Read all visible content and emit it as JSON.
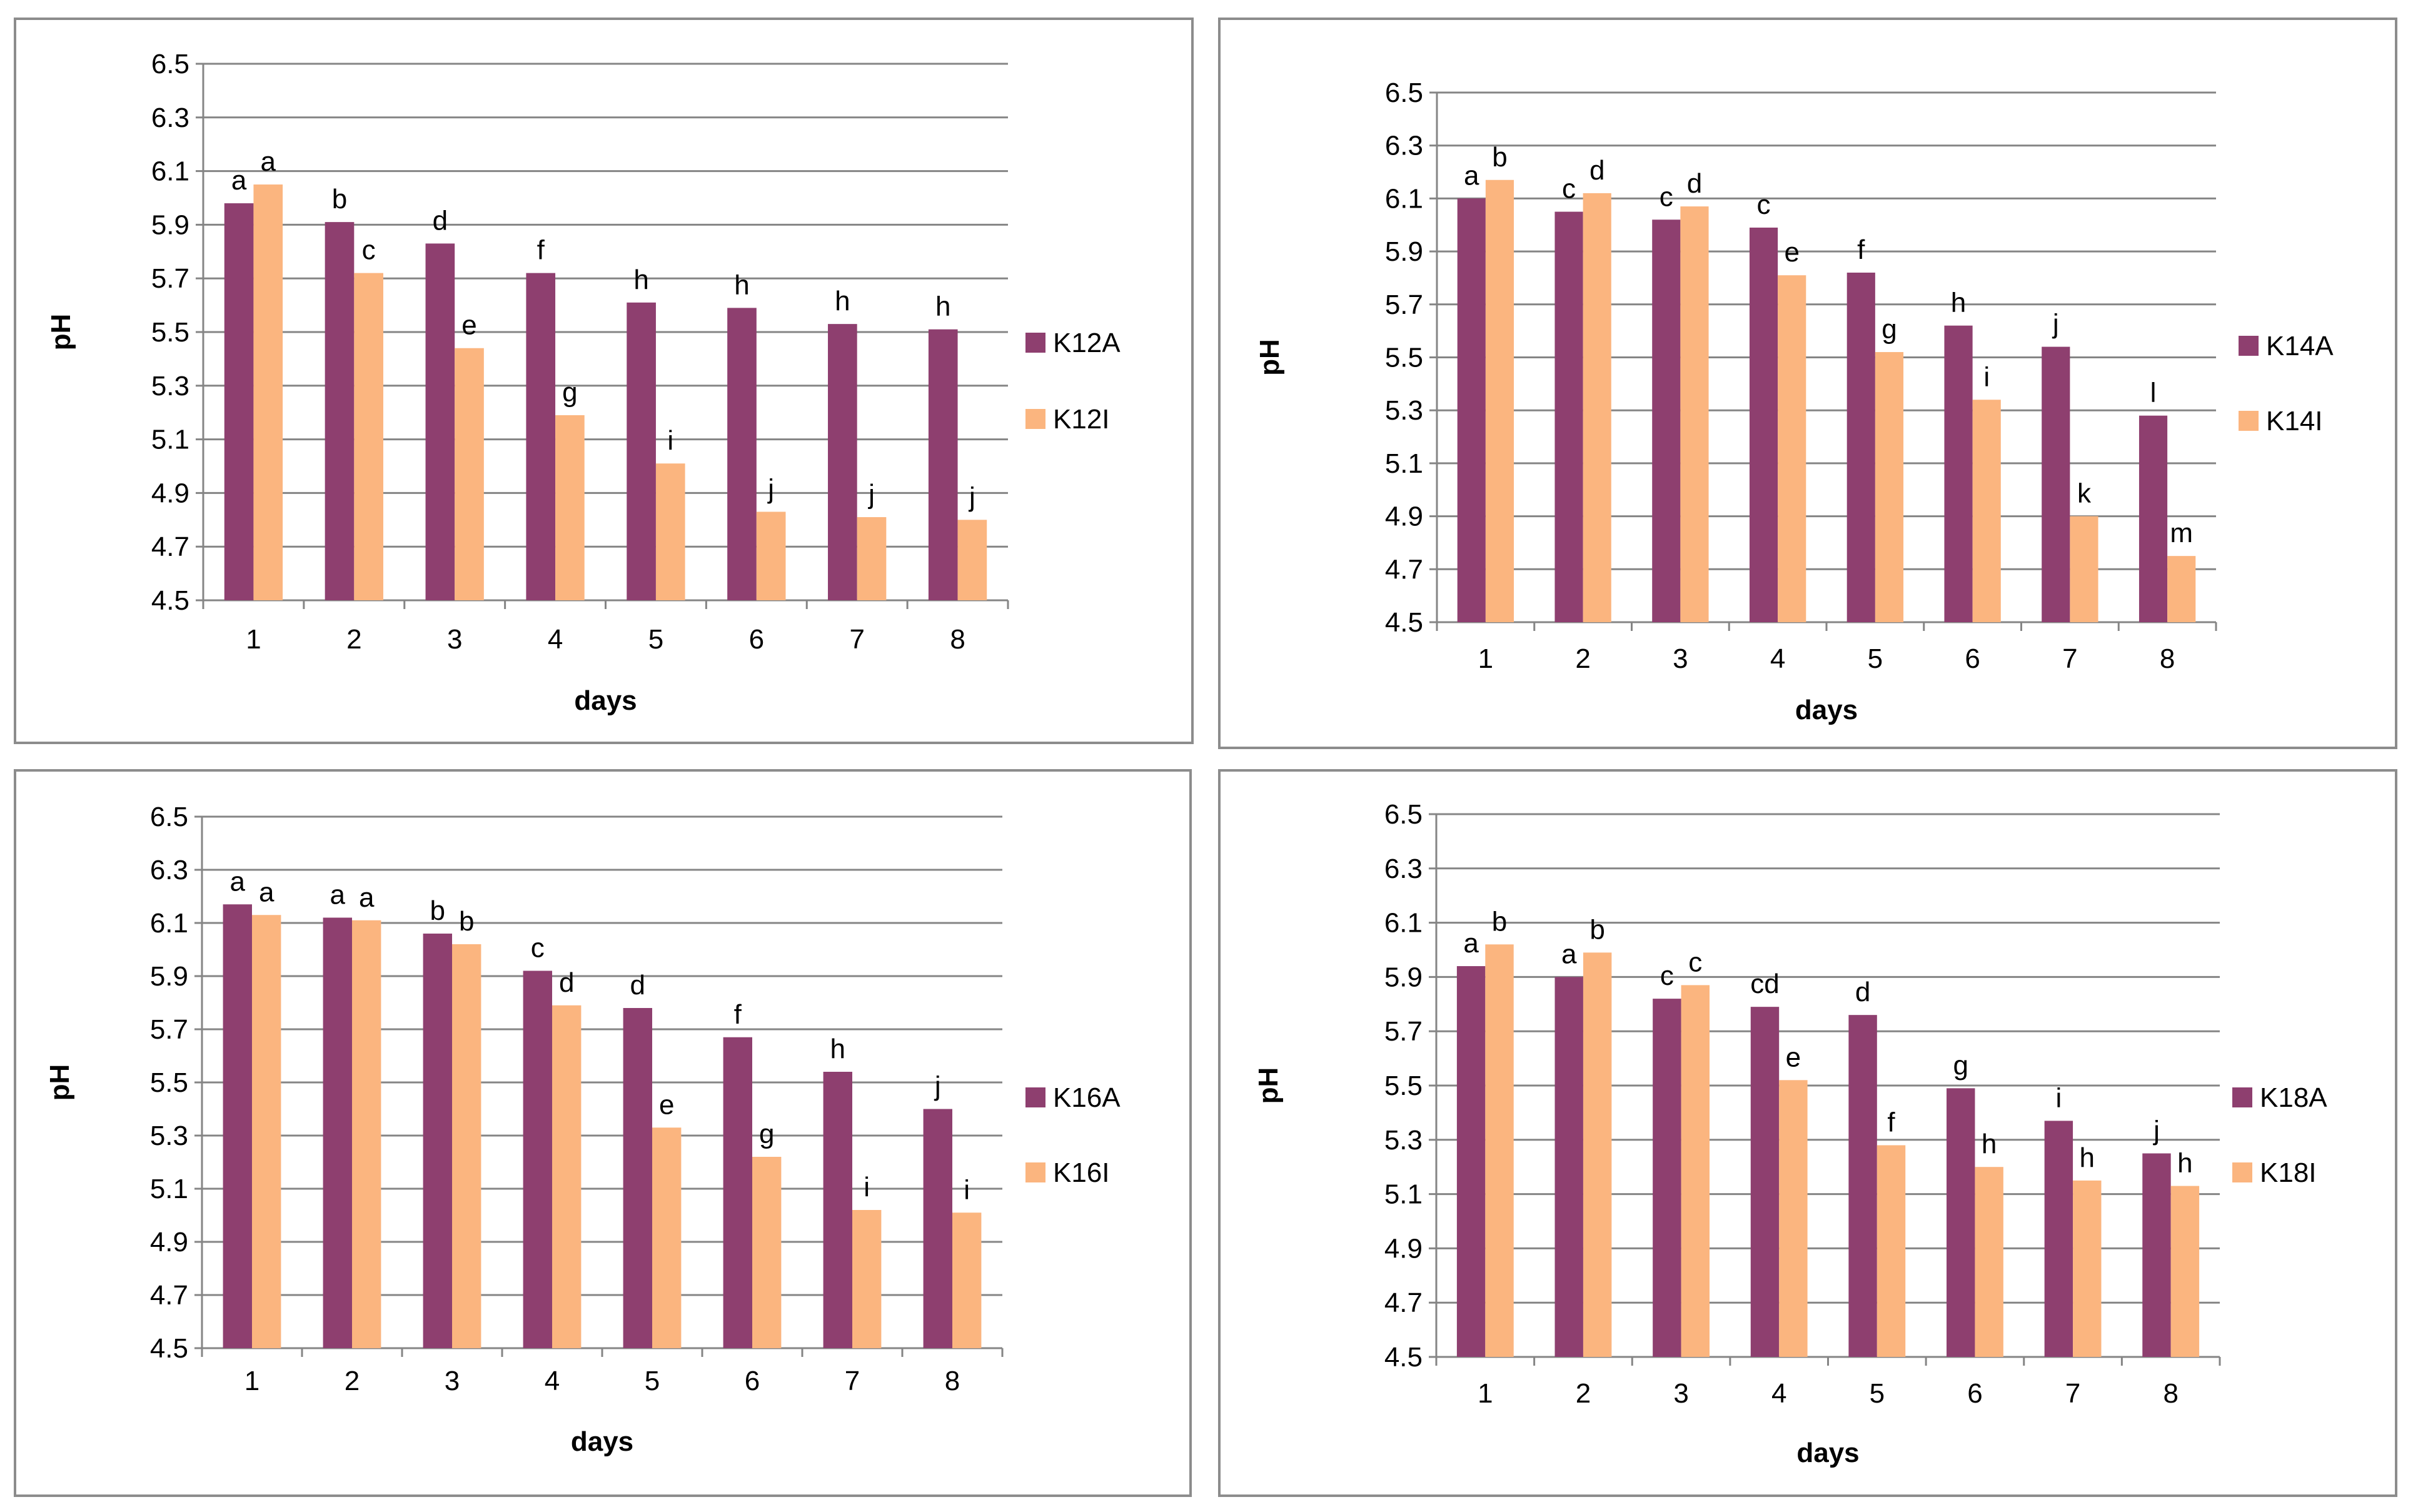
{
  "colors": {
    "series_a": "#8e3f6f",
    "series_i": "#fbb57f"
  },
  "chart_data": [
    {
      "type": "bar",
      "title": "",
      "xlabel": "days",
      "ylabel": "pH",
      "ylim": [
        4.5,
        6.5
      ],
      "yticks": [
        "4.5",
        "4.7",
        "4.9",
        "5.1",
        "5.3",
        "5.5",
        "5.7",
        "5.9",
        "6.1",
        "6.3",
        "6.5"
      ],
      "categories": [
        "1",
        "2",
        "3",
        "4",
        "5",
        "6",
        "7",
        "8"
      ],
      "series": [
        {
          "name": "K12A",
          "values": [
            5.98,
            5.91,
            5.83,
            5.72,
            5.61,
            5.59,
            5.53,
            5.51
          ],
          "letters": [
            "a",
            "b",
            "d",
            "f",
            "h",
            "h",
            "h",
            "h"
          ]
        },
        {
          "name": "K12I",
          "values": [
            6.05,
            5.72,
            5.44,
            5.19,
            5.01,
            4.83,
            4.81,
            4.8
          ],
          "letters": [
            "a",
            "c",
            "e",
            "g",
            "i",
            "j",
            "j",
            "j"
          ]
        }
      ]
    },
    {
      "type": "bar",
      "title": "",
      "xlabel": "days",
      "ylabel": "pH",
      "ylim": [
        4.5,
        6.5
      ],
      "yticks": [
        "4.5",
        "4.7",
        "4.9",
        "5.1",
        "5.3",
        "5.5",
        "5.7",
        "5.9",
        "6.1",
        "6.3",
        "6.5"
      ],
      "categories": [
        "1",
        "2",
        "3",
        "4",
        "5",
        "6",
        "7",
        "8"
      ],
      "series": [
        {
          "name": "K14A",
          "values": [
            6.1,
            6.05,
            6.02,
            5.99,
            5.82,
            5.62,
            5.54,
            5.28
          ],
          "letters": [
            "a",
            "c",
            "c",
            "c",
            "f",
            "h",
            "j",
            "l"
          ]
        },
        {
          "name": "K14I",
          "values": [
            6.17,
            6.12,
            6.07,
            5.81,
            5.52,
            5.34,
            4.9,
            4.75
          ],
          "letters": [
            "b",
            "d",
            "d",
            "e",
            "g",
            "i",
            "k",
            "m"
          ]
        }
      ]
    },
    {
      "type": "bar",
      "title": "",
      "xlabel": "days",
      "ylabel": "pH",
      "ylim": [
        4.5,
        6.5
      ],
      "yticks": [
        "4.5",
        "4.7",
        "4.9",
        "5.1",
        "5.3",
        "5.5",
        "5.7",
        "5.9",
        "6.1",
        "6.3",
        "6.5"
      ],
      "categories": [
        "1",
        "2",
        "3",
        "4",
        "5",
        "6",
        "7",
        "8"
      ],
      "series": [
        {
          "name": "K16A",
          "values": [
            6.17,
            6.12,
            6.06,
            5.92,
            5.78,
            5.67,
            5.54,
            5.4
          ],
          "letters": [
            "a",
            "a",
            "b",
            "c",
            "d",
            "f",
            "h",
            "j"
          ]
        },
        {
          "name": "K16I",
          "values": [
            6.13,
            6.11,
            6.02,
            5.79,
            5.33,
            5.22,
            5.02,
            5.01
          ],
          "letters": [
            "a",
            "a",
            "b",
            "d",
            "e",
            "g",
            "i",
            "i"
          ]
        }
      ]
    },
    {
      "type": "bar",
      "title": "",
      "xlabel": "days",
      "ylabel": "pH",
      "ylim": [
        4.5,
        6.5
      ],
      "yticks": [
        "4.5",
        "4.7",
        "4.9",
        "5.1",
        "5.3",
        "5.5",
        "5.7",
        "5.9",
        "6.1",
        "6.3",
        "6.5"
      ],
      "categories": [
        "1",
        "2",
        "3",
        "4",
        "5",
        "6",
        "7",
        "8"
      ],
      "series": [
        {
          "name": "K18A",
          "values": [
            5.94,
            5.9,
            5.82,
            5.79,
            5.76,
            5.49,
            5.37,
            5.25
          ],
          "letters": [
            "a",
            "a",
            "c",
            "cd",
            "d",
            "g",
            "i",
            "j"
          ]
        },
        {
          "name": "K18I",
          "values": [
            6.02,
            5.99,
            5.87,
            5.52,
            5.28,
            5.2,
            5.15,
            5.13
          ],
          "letters": [
            "b",
            "b",
            "c",
            "e",
            "f",
            "h",
            "h",
            "h"
          ]
        }
      ]
    }
  ]
}
